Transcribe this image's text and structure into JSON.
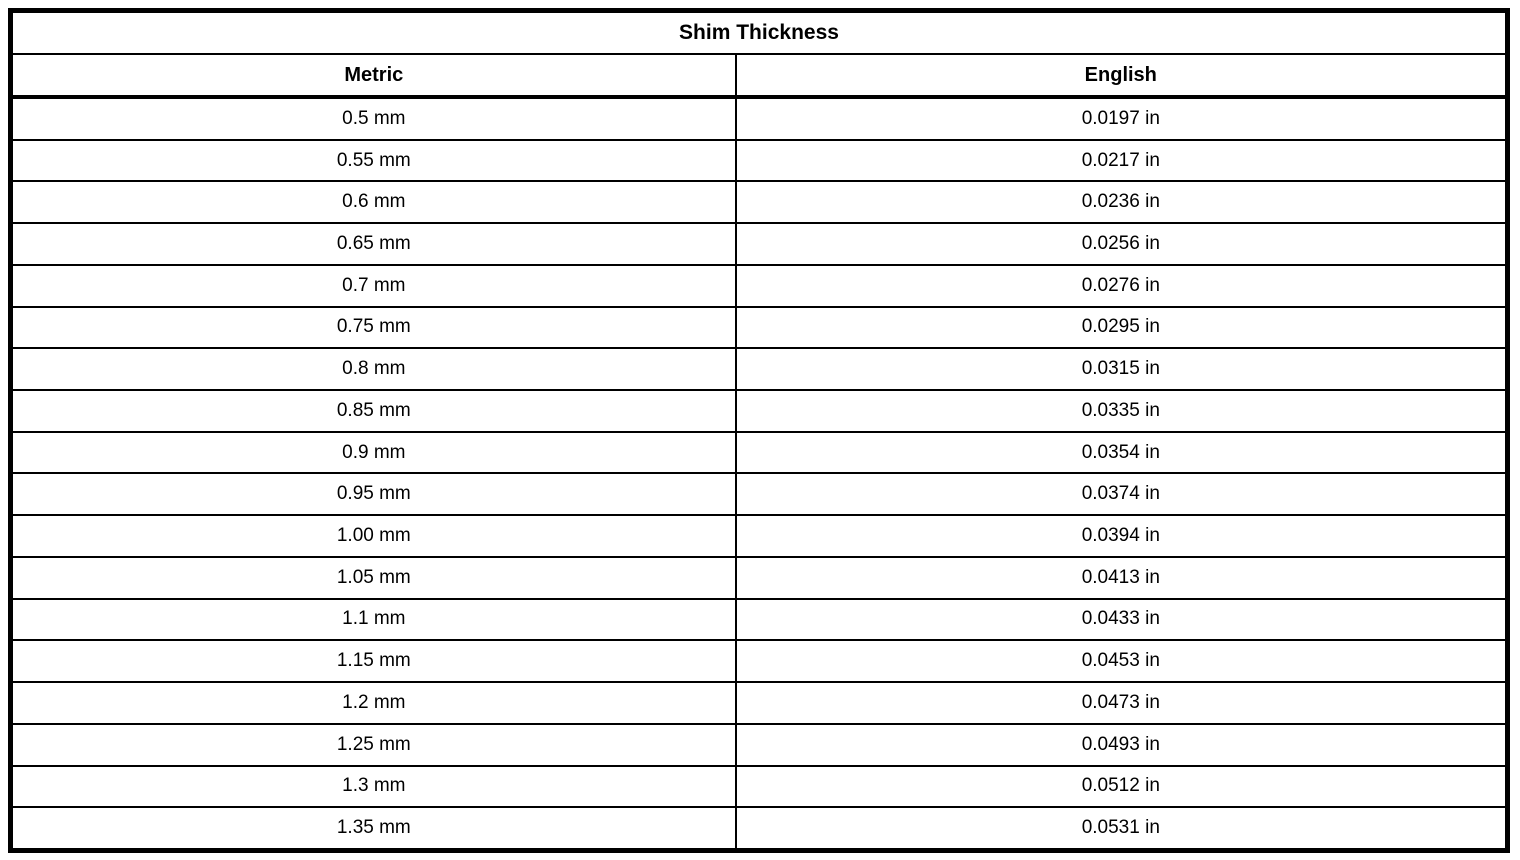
{
  "table": {
    "title": "Shim Thickness",
    "columns": {
      "metric": "Metric",
      "english": "English"
    },
    "rows": [
      {
        "metric": "0.5 mm",
        "english": "0.0197 in"
      },
      {
        "metric": "0.55 mm",
        "english": "0.0217 in"
      },
      {
        "metric": "0.6 mm",
        "english": "0.0236 in"
      },
      {
        "metric": "0.65 mm",
        "english": "0.0256 in"
      },
      {
        "metric": "0.7 mm",
        "english": "0.0276 in"
      },
      {
        "metric": "0.75 mm",
        "english": "0.0295 in"
      },
      {
        "metric": "0.8 mm",
        "english": "0.0315 in"
      },
      {
        "metric": "0.85 mm",
        "english": "0.0335 in"
      },
      {
        "metric": "0.9 mm",
        "english": "0.0354 in"
      },
      {
        "metric": "0.95 mm",
        "english": "0.0374 in"
      },
      {
        "metric": "1.00 mm",
        "english": "0.0394 in"
      },
      {
        "metric": "1.05 mm",
        "english": "0.0413 in"
      },
      {
        "metric": "1.1 mm",
        "english": "0.0433 in"
      },
      {
        "metric": "1.15 mm",
        "english": "0.0453 in"
      },
      {
        "metric": "1.2 mm",
        "english": "0.0473 in"
      },
      {
        "metric": "1.25 mm",
        "english": "0.0493 in"
      },
      {
        "metric": "1.3 mm",
        "english": "0.0512 in"
      },
      {
        "metric": "1.35 mm",
        "english": "0.0531 in"
      }
    ]
  },
  "colors": {
    "border": "#000000",
    "background": "#ffffff",
    "text": "#000000"
  }
}
